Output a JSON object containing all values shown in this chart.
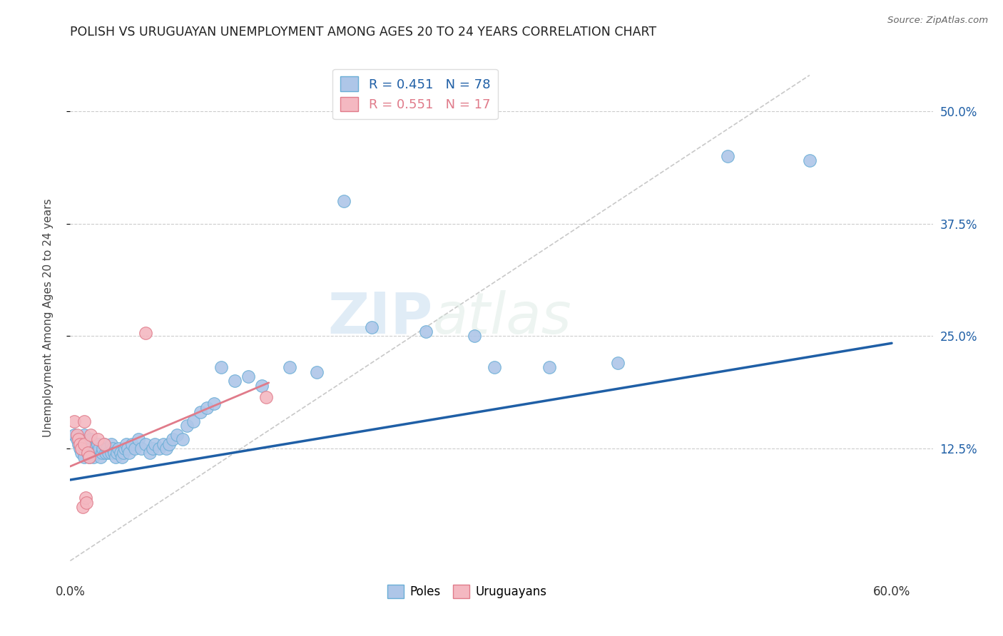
{
  "title": "POLISH VS URUGUAYAN UNEMPLOYMENT AMONG AGES 20 TO 24 YEARS CORRELATION CHART",
  "source": "Source: ZipAtlas.com",
  "ylabel": "Unemployment Among Ages 20 to 24 years",
  "xlim": [
    0.0,
    0.63
  ],
  "ylim": [
    -0.02,
    0.56
  ],
  "xticks": [
    0.0,
    0.6
  ],
  "xticklabels": [
    "0.0%",
    "60.0%"
  ],
  "yticks": [
    0.125,
    0.25,
    0.375,
    0.5
  ],
  "yticklabels": [
    "12.5%",
    "25.0%",
    "37.5%",
    "50.0%"
  ],
  "grid_color": "#cccccc",
  "background_color": "#ffffff",
  "poles_color": "#aec6e8",
  "poles_edge_color": "#6aaed6",
  "uruguayans_color": "#f4b8c1",
  "uruguayans_edge_color": "#e07b8a",
  "poles_line_color": "#1f5fa6",
  "uruguayans_line_color": "#e07b8a",
  "diagonal_color": "#bbbbbb",
  "legend_r_poles": "R = 0.451",
  "legend_n_poles": "N = 78",
  "legend_r_uruguayans": "R = 0.551",
  "legend_n_uruguayans": "N = 17",
  "watermark_zip": "ZIP",
  "watermark_atlas": "atlas",
  "poles_trend_x": [
    0.0,
    0.6
  ],
  "poles_trend_y": [
    0.09,
    0.242
  ],
  "uruguayans_trend_x": [
    0.0,
    0.145
  ],
  "uruguayans_trend_y": [
    0.105,
    0.198
  ],
  "poles_x": [
    0.003,
    0.005,
    0.006,
    0.007,
    0.008,
    0.009,
    0.01,
    0.01,
    0.01,
    0.011,
    0.012,
    0.013,
    0.014,
    0.015,
    0.015,
    0.016,
    0.017,
    0.018,
    0.019,
    0.02,
    0.02,
    0.021,
    0.022,
    0.023,
    0.024,
    0.025,
    0.026,
    0.027,
    0.028,
    0.03,
    0.03,
    0.031,
    0.032,
    0.033,
    0.034,
    0.035,
    0.037,
    0.038,
    0.039,
    0.04,
    0.041,
    0.042,
    0.043,
    0.045,
    0.047,
    0.05,
    0.052,
    0.055,
    0.058,
    0.06,
    0.062,
    0.065,
    0.068,
    0.07,
    0.072,
    0.075,
    0.078,
    0.082,
    0.085,
    0.09,
    0.095,
    0.1,
    0.105,
    0.11,
    0.12,
    0.13,
    0.14,
    0.16,
    0.18,
    0.2,
    0.22,
    0.26,
    0.295,
    0.31,
    0.35,
    0.4,
    0.48,
    0.54
  ],
  "poles_y": [
    0.14,
    0.135,
    0.13,
    0.125,
    0.12,
    0.13,
    0.14,
    0.125,
    0.115,
    0.13,
    0.125,
    0.12,
    0.115,
    0.135,
    0.125,
    0.12,
    0.115,
    0.125,
    0.12,
    0.13,
    0.12,
    0.125,
    0.115,
    0.12,
    0.125,
    0.13,
    0.12,
    0.125,
    0.12,
    0.13,
    0.12,
    0.125,
    0.12,
    0.115,
    0.12,
    0.125,
    0.12,
    0.115,
    0.12,
    0.125,
    0.13,
    0.125,
    0.12,
    0.13,
    0.125,
    0.135,
    0.125,
    0.13,
    0.12,
    0.125,
    0.13,
    0.125,
    0.13,
    0.125,
    0.13,
    0.135,
    0.14,
    0.135,
    0.15,
    0.155,
    0.165,
    0.17,
    0.175,
    0.215,
    0.2,
    0.205,
    0.195,
    0.215,
    0.21,
    0.4,
    0.26,
    0.255,
    0.25,
    0.215,
    0.215,
    0.22,
    0.45,
    0.445
  ],
  "uruguayans_x": [
    0.003,
    0.005,
    0.006,
    0.007,
    0.008,
    0.009,
    0.01,
    0.01,
    0.011,
    0.012,
    0.013,
    0.014,
    0.015,
    0.02,
    0.025,
    0.055,
    0.143
  ],
  "uruguayans_y": [
    0.155,
    0.14,
    0.135,
    0.13,
    0.125,
    0.06,
    0.155,
    0.13,
    0.07,
    0.065,
    0.12,
    0.115,
    0.14,
    0.135,
    0.13,
    0.253,
    0.182
  ]
}
